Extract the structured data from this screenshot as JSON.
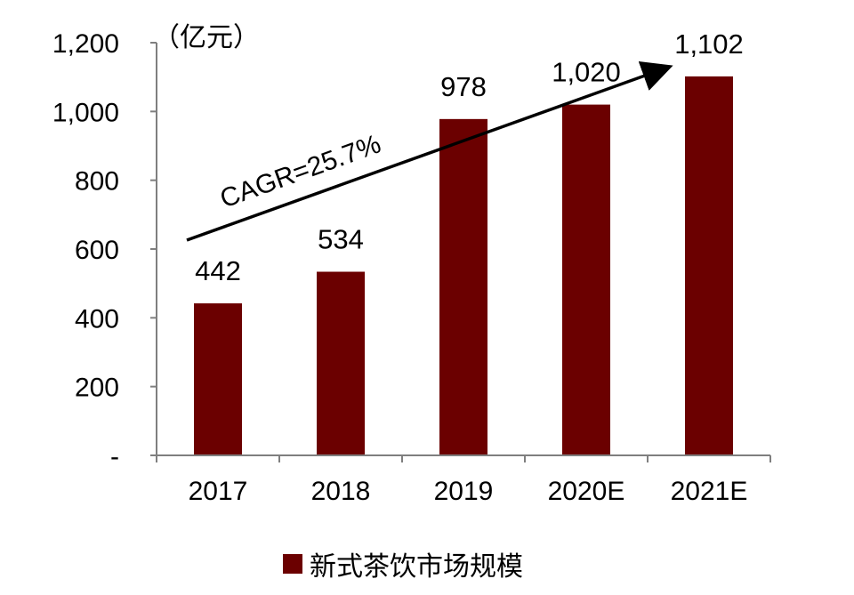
{
  "chart_data": {
    "type": "bar",
    "categories": [
      "2017",
      "2018",
      "2019",
      "2020E",
      "2021E"
    ],
    "series": [
      {
        "name": "新式茶饮市场规模",
        "values": [
          442,
          534,
          978,
          1020,
          1102
        ]
      }
    ],
    "data_labels": [
      "442",
      "534",
      "978",
      "1,020",
      "1,102"
    ],
    "y_tick_labels": [
      "-",
      "200",
      "400",
      "600",
      "800",
      "1,000",
      "1,200"
    ],
    "y_ticks": [
      0,
      200,
      400,
      600,
      800,
      1000,
      1200
    ],
    "ylim": [
      0,
      1200
    ],
    "unit": "（亿元）",
    "annotation": "CAGR=25.7%",
    "legend_position": "bottom",
    "grid": false,
    "colors": {
      "bar": "#6b0000",
      "axis": "#7f7f7f",
      "arrow": "#000000"
    }
  }
}
